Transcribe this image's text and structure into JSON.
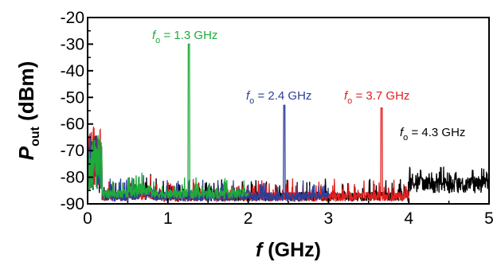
{
  "chart_data": {
    "type": "line",
    "xlabel": {
      "symbol": "f",
      "unit": " (GHz)"
    },
    "ylabel": {
      "symbol": "P",
      "sub": "out",
      "unit": " (dBm)"
    },
    "xlim": [
      0,
      5
    ],
    "ylim": [
      -90,
      -20
    ],
    "xticks": [
      "0",
      "1",
      "2",
      "3",
      "4",
      "5"
    ],
    "yticks": [
      "-20",
      "-30",
      "-40",
      "-50",
      "-60",
      "-70",
      "-80",
      "-90"
    ],
    "grid": false,
    "series": [
      {
        "color": "#000000",
        "fundamental_ghz": 4.3,
        "peak_dbm": -67.5,
        "span_ghz": [
          0,
          5
        ],
        "noise_floor_dbm": -87,
        "low_freq_spike_dbm": -64,
        "annotation": {
          "prefix": "f",
          "sub": "o",
          "text": " = 4.3 GHz"
        }
      },
      {
        "color": "#e02020",
        "fundamental_ghz": 3.66,
        "peak_dbm": -54,
        "span_ghz": [
          0,
          4.0
        ],
        "noise_floor_dbm": -87,
        "low_freq_spike_dbm": -61,
        "annotation": {
          "prefix": "f",
          "sub": "o",
          "text": " = 3.7 GHz"
        }
      },
      {
        "color": "#2a3f9a",
        "fundamental_ghz": 2.45,
        "peak_dbm": -53,
        "span_ghz": [
          0,
          3.0
        ],
        "noise_floor_dbm": -87,
        "low_freq_spike_dbm": -63,
        "annotation": {
          "prefix": "f",
          "sub": "o",
          "text": " = 2.4 GHz"
        }
      },
      {
        "color": "#1faa3a",
        "fundamental_ghz": 1.26,
        "peak_dbm": -30,
        "span_ghz": [
          0,
          2.0
        ],
        "noise_floor_dbm": -86,
        "low_freq_spike_dbm": -63,
        "annotation": {
          "prefix": "f",
          "sub": "o",
          "text": " = 1.3 GHz"
        }
      }
    ]
  }
}
